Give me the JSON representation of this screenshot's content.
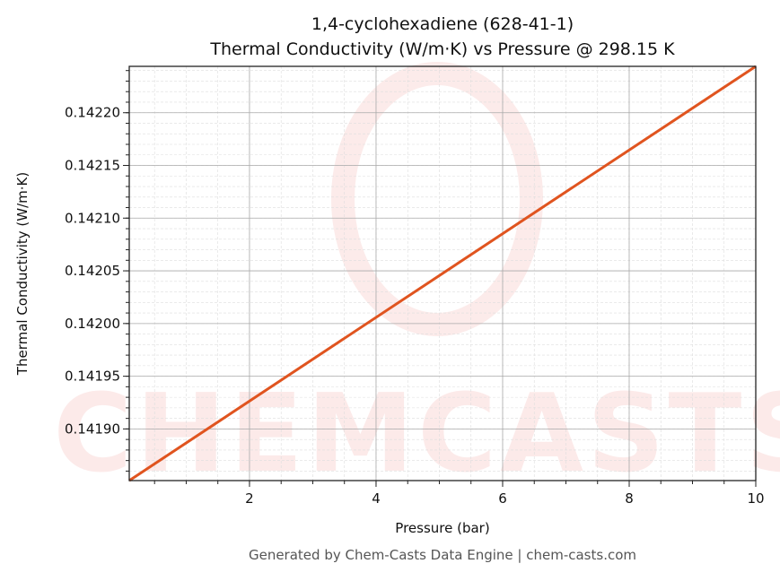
{
  "chart_data": {
    "type": "line",
    "title": "1,4-cyclohexadiene (628-41-1)",
    "subtitle": "Thermal Conductivity (W/m·K) vs Pressure @ 298.15 K",
    "xlabel": "Pressure (bar)",
    "ylabel": "Thermal Conductivity (W/m·K)",
    "xlim": [
      0.1,
      10
    ],
    "ylim": [
      0.141851,
      0.142244
    ],
    "xticks": [
      2,
      4,
      6,
      8,
      10
    ],
    "yticks": [
      0.1419,
      0.14195,
      0.142,
      0.14205,
      0.1421,
      0.14215,
      0.1422
    ],
    "ytick_labels": [
      "0.14190",
      "0.14195",
      "0.14200",
      "0.14205",
      "0.14210",
      "0.14215",
      "0.14220"
    ],
    "grid": true,
    "series": [
      {
        "x": [
          0.1,
          10
        ],
        "y": [
          0.141851,
          0.142244
        ],
        "color": "#e0541f"
      }
    ],
    "watermark": "CHEMCASTS",
    "footer": "Generated by Chem-Casts Data Engine | chem-casts.com"
  }
}
